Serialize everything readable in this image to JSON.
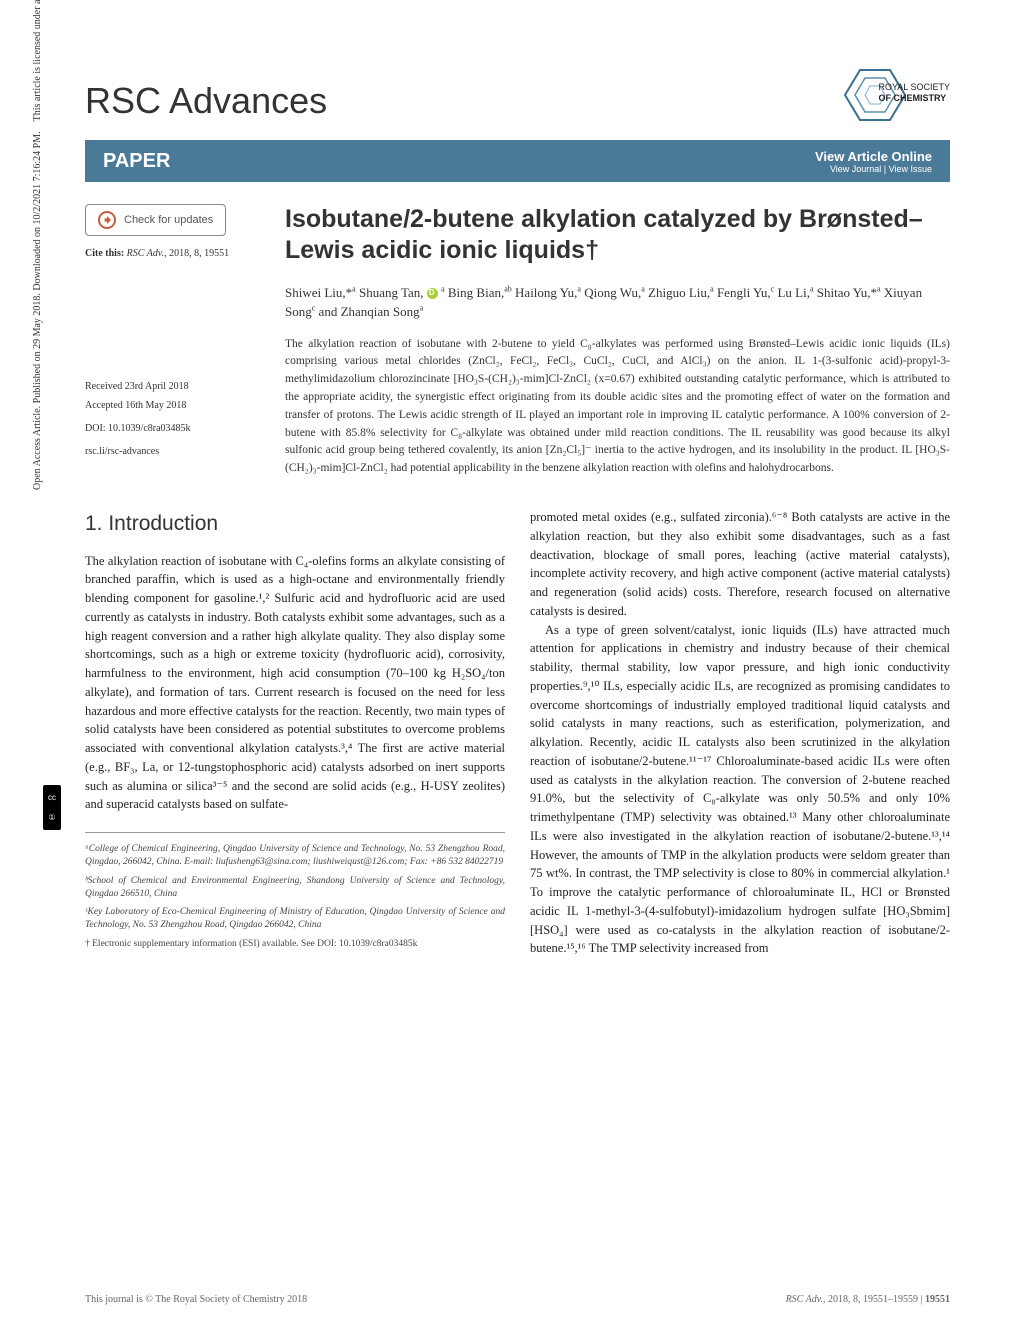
{
  "sidebar_text": "Open Access Article. Published on 29 May 2018. Downloaded on 10/2/2021 7:16:24 PM.",
  "sidebar_text2": "This article is licensed under a Creative Commons Attribution 3.0 Unported Licence.",
  "journal_name": "RSC Advances",
  "logo_text_1": "ROYAL SOCIETY",
  "logo_text_2": "OF CHEMISTRY",
  "paper_label": "PAPER",
  "view_online": "View Article Online",
  "view_journal": "View Journal | View Issue",
  "check_updates": "Check for updates",
  "cite_this_label": "Cite this:",
  "cite_this_journal": "RSC Adv.",
  "cite_this_rest": ", 2018, 8, 19551",
  "received": "Received 23rd April 2018",
  "accepted": "Accepted 16th May 2018",
  "doi": "DOI: 10.1039/c8ra03485k",
  "rsc_link": "rsc.li/rsc-advances",
  "title": "Isobutane/2-butene alkylation catalyzed by Brønsted–Lewis acidic ionic liquids†",
  "authors_html": "Shiwei Liu,*<sup>a</sup> Shuang Tan, <span class='orcid'></span> <sup>a</sup> Bing Bian,<sup>ab</sup> Hailong Yu,<sup>a</sup> Qiong Wu,<sup>a</sup> Zhiguo Liu,<sup>a</sup> Fengli Yu,<sup>c</sup> Lu Li,<sup>a</sup> Shitao Yu,*<sup>a</sup> Xiuyan Song<sup>c</sup> and Zhanqian Song<sup>a</sup>",
  "abstract": "The alkylation reaction of isobutane with 2-butene to yield C₈-alkylates was performed using Brønsted–Lewis acidic ionic liquids (ILs) comprising various metal chlorides (ZnCl₂, FeCl₂, FeCl₃, CuCl₂, CuCl, and AlCl₃) on the anion. IL 1-(3-sulfonic acid)-propyl-3-methylimidazolium chlorozincinate [HO₃S-(CH₂)₃-mim]Cl-ZnCl₂ (x=0.67) exhibited outstanding catalytic performance, which is attributed to the appropriate acidity, the synergistic effect originating from its double acidic sites and the promoting effect of water on the formation and transfer of protons. The Lewis acidic strength of IL played an important role in improving IL catalytic performance. A 100% conversion of 2-butene with 85.8% selectivity for C₈-alkylate was obtained under mild reaction conditions. The IL reusability was good because its alkyl sulfonic acid group being tethered covalently, its anion [Zn₂Cl₅]⁻ inertia to the active hydrogen, and its insolubility in the product. IL [HO₃S-(CH₂)₃-mim]Cl-ZnCl₂ had potential applicability in the benzene alkylation reaction with olefins and halohydrocarbons.",
  "intro_heading": "1.    Introduction",
  "intro_left": "The alkylation reaction of isobutane with C₄-olefins forms an alkylate consisting of branched paraffin, which is used as a high-octane and environmentally friendly blending component for gasoline.¹,² Sulfuric acid and hydrofluoric acid are used currently as catalysts in industry. Both catalysts exhibit some advantages, such as a high reagent conversion and a rather high alkylate quality. They also display some shortcomings, such as a high or extreme toxicity (hydrofluoric acid), corrosivity, harmfulness to the environment, high acid consumption (70–100 kg H₂SO₄/ton alkylate), and formation of tars. Current research is focused on the need for less hazardous and more effective catalysts for the reaction. Recently, two main types of solid catalysts have been considered as potential substitutes to overcome problems associated with conventional alkylation catalysts.³,⁴ The first are active material (e.g., BF₃, La, or 12-tungstophosphoric acid) catalysts adsorbed on inert supports such as alumina or silica³⁻⁵ and the second are solid acids (e.g., H-USY zeolites) and superacid catalysts based on sulfate-",
  "intro_right": "promoted metal oxides (e.g., sulfated zirconia).⁶⁻⁸ Both catalysts are active in the alkylation reaction, but they also exhibit some disadvantages, such as a fast deactivation, blockage of small pores, leaching (active material catalysts), incomplete activity recovery, and high active component (active material catalysts) and regeneration (solid acids) costs. Therefore, research focused on alternative catalysts is desired.",
  "intro_right_p2": "As a type of green solvent/catalyst, ionic liquids (ILs) have attracted much attention for applications in chemistry and industry because of their chemical stability, thermal stability, low vapor pressure, and high ionic conductivity properties.⁹,¹⁰ ILs, especially acidic ILs, are recognized as promising candidates to overcome shortcomings of industrially employed traditional liquid catalysts and solid catalysts in many reactions, such as esterification, polymerization, and alkylation. Recently, acidic IL catalysts also been scrutinized in the alkylation reaction of isobutane/2-butene.¹¹⁻¹⁷ Chloroaluminate-based acidic ILs were often used as catalysts in the alkylation reaction. The conversion of 2-butene reached 91.0%, but the selectivity of C₈-alkylate was only 50.5% and only 10% trimethylpentane (TMP) selectivity was obtained.¹³ Many other chloroaluminate ILs were also investigated in the alkylation reaction of isobutane/2-butene.¹³,¹⁴ However, the amounts of TMP in the alkylation products were seldom greater than 75 wt%. In contrast, the TMP selectivity is close to 80% in commercial alkylation.¹ To improve the catalytic performance of chloroaluminate IL, HCl or Brønsted acidic IL 1-methyl-3-(4-sulfobutyl)-imidazolium hydrogen sulfate [HO₃Sbmim][HSO₄] were used as co-catalysts in the alkylation reaction of isobutane/2-butene.¹⁵,¹⁶ The TMP selectivity increased from",
  "aff_a": "ᵃCollege of Chemical Engineering, Qingdao University of Science and Technology, No. 53 Zhengzhou Road, Qingdao, 266042, China. E-mail: liufusheng63@sina.com; liushiweiqust@126.com; Fax: +86 532 84022719",
  "aff_b": "ᵇSchool of Chemical and Environmental Engineering, Shandong University of Science and Technology, Qingdao 266510, China",
  "aff_c": "ᶜKey Laboratory of Eco-Chemical Engineering of Ministry of Education, Qingdao University of Science and Technology, No. 53 Zhengzhou Road, Qingdao 266042, China",
  "aff_esi": "† Electronic supplementary information (ESI) available. See DOI: 10.1039/c8ra03485k",
  "footer_left": "This journal is © The Royal Society of Chemistry 2018",
  "footer_right_journal": "RSC Adv.",
  "footer_right_rest": ", 2018, 8, 19551–19559 | ",
  "footer_right_page": "19551",
  "colors": {
    "bar_bg": "#4b7a99",
    "text": "#333333",
    "orcid": "#a6ce39",
    "check_orange": "#c95d3a"
  }
}
